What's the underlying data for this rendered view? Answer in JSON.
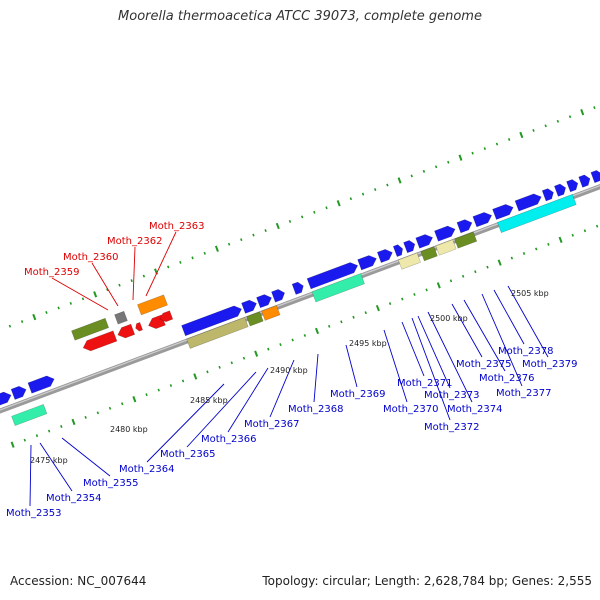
{
  "header": {
    "title": "Moorella thermoacetica ATCC 39073, complete genome"
  },
  "footer": {
    "accession": "Accession: NC_007644",
    "summary": "Topology: circular; Length: 2,628,784 bp; Genes: 2,555"
  },
  "colors": {
    "backbone": "#888888",
    "forward_label": "#0000cc",
    "reverse_label": "#dd0000",
    "tick": "#229922",
    "blue": "#1a1aee",
    "green": "#6b8e23",
    "red": "#ee1111",
    "orange": "#ff8c00",
    "grey": "#777777",
    "khaki": "#bdb76b",
    "cyan": "#00eeee",
    "aquamarine": "#33eeaa",
    "pale": "#eee8aa"
  },
  "kbp_labels": [
    "2475 kbp",
    "2480 kbp",
    "2485 kbp",
    "2490 kbp",
    "2495 kbp",
    "2500 kbp",
    "2505 kbp"
  ],
  "labels_top": [
    "Moth_2359",
    "Moth_2360",
    "Moth_2362",
    "Moth_2363"
  ],
  "labels_bottom": [
    "Moth_2353",
    "Moth_2354",
    "Moth_2355",
    "Moth_2364",
    "Moth_2365",
    "Moth_2366",
    "Moth_2367",
    "Moth_2368",
    "Moth_2369",
    "Moth_2370",
    "Moth_2371",
    "Moth_2372",
    "Moth_2373",
    "Moth_2374",
    "Moth_2375",
    "Moth_2376",
    "Moth_2377",
    "Moth_2378",
    "Moth_2379"
  ]
}
